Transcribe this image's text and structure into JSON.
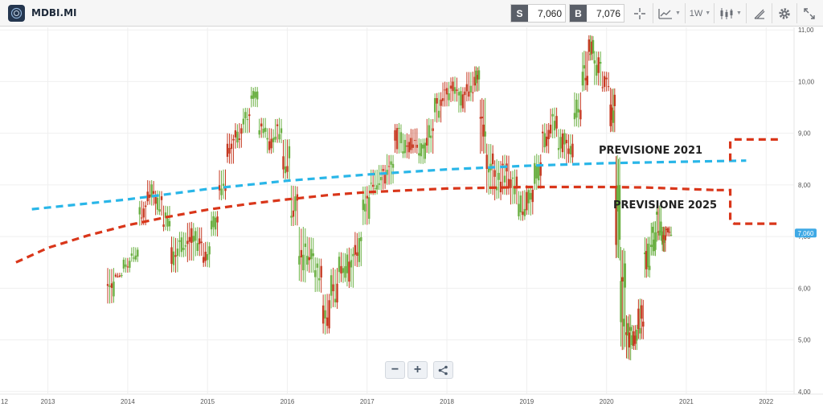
{
  "header": {
    "symbol": "MDBI.MI",
    "sell": {
      "tag": "S",
      "value": "7,060"
    },
    "buy": {
      "tag": "B",
      "value": "7,076"
    },
    "timeframe": "1W"
  },
  "controls": {
    "zoom_out": "−",
    "zoom_in": "+"
  },
  "colors": {
    "up": "#6bb043",
    "down": "#c63a22",
    "forecast_2021": "#29b6e8",
    "forecast_2025": "#d9361a",
    "last_tag": "#3fa9e5"
  },
  "icons": [
    "crosshair-icon",
    "chart-type-icon",
    "candles-icon",
    "draw-icon",
    "gear-icon",
    "expand-icon",
    "share-icon"
  ],
  "chart_data": {
    "type": "candlestick",
    "x_tick_labels": [
      "12",
      "2013",
      "2014",
      "2015",
      "2016",
      "2017",
      "2018",
      "2019",
      "2020",
      "2021",
      "2022"
    ],
    "y_tick_labels": [
      "11,00",
      "10,00",
      "9,00",
      "8,00",
      "7,00",
      "6,00",
      "5,00",
      "4,00"
    ],
    "y_ticks": [
      11,
      10,
      9,
      8,
      7,
      6,
      5,
      4
    ],
    "ylim": [
      3.95,
      11.05
    ],
    "xlim": [
      2012.4,
      2022.35
    ],
    "last_price": 7.06,
    "last_price_label": "7,060",
    "grid": true,
    "annotations": [
      "PREVISIONE 2021",
      "PREVISIONE 2025"
    ],
    "series": [
      {
        "type": "candlestick",
        "ohlc_points": [
          [
            2013.75,
            5.7,
            6.4
          ],
          [
            2013.85,
            6.2,
            6.3
          ],
          [
            2013.95,
            6.3,
            6.6
          ],
          [
            2014.05,
            6.5,
            6.8
          ],
          [
            2014.15,
            7.2,
            7.7
          ],
          [
            2014.25,
            7.6,
            8.1
          ],
          [
            2014.35,
            7.4,
            7.9
          ],
          [
            2014.45,
            7.1,
            7.6
          ],
          [
            2014.55,
            6.3,
            7.0
          ],
          [
            2014.65,
            6.6,
            7.1
          ],
          [
            2014.75,
            6.5,
            7.3
          ],
          [
            2014.85,
            6.6,
            7.2
          ],
          [
            2014.95,
            6.4,
            6.9
          ],
          [
            2015.05,
            7.0,
            7.5
          ],
          [
            2015.15,
            7.7,
            8.3
          ],
          [
            2015.25,
            8.4,
            9.0
          ],
          [
            2015.35,
            8.7,
            9.2
          ],
          [
            2015.45,
            9.0,
            9.5
          ],
          [
            2015.55,
            9.5,
            9.9
          ],
          [
            2015.65,
            8.9,
            9.3
          ],
          [
            2015.75,
            8.6,
            9.1
          ],
          [
            2015.85,
            8.8,
            9.3
          ],
          [
            2015.95,
            8.1,
            8.9
          ],
          [
            2016.05,
            7.2,
            8.0
          ],
          [
            2016.15,
            6.1,
            7.2
          ],
          [
            2016.25,
            6.3,
            7.0
          ],
          [
            2016.35,
            5.9,
            6.6
          ],
          [
            2016.45,
            5.1,
            5.9
          ],
          [
            2016.55,
            5.6,
            6.4
          ],
          [
            2016.65,
            6.1,
            6.7
          ],
          [
            2016.75,
            6.0,
            6.8
          ],
          [
            2016.85,
            6.4,
            7.1
          ],
          [
            2016.95,
            7.2,
            8.0
          ],
          [
            2017.05,
            7.8,
            8.3
          ],
          [
            2017.15,
            7.9,
            8.4
          ],
          [
            2017.25,
            8.0,
            8.6
          ],
          [
            2017.35,
            8.6,
            9.2
          ],
          [
            2017.45,
            8.5,
            9.0
          ],
          [
            2017.55,
            8.6,
            9.1
          ],
          [
            2017.65,
            8.4,
            8.9
          ],
          [
            2017.75,
            8.6,
            9.3
          ],
          [
            2017.85,
            9.2,
            9.8
          ],
          [
            2017.95,
            9.5,
            10.0
          ],
          [
            2018.05,
            9.6,
            10.1
          ],
          [
            2018.15,
            9.4,
            9.9
          ],
          [
            2018.25,
            9.6,
            10.2
          ],
          [
            2018.35,
            9.8,
            10.3
          ],
          [
            2018.42,
            8.6,
            9.7
          ],
          [
            2018.5,
            7.8,
            8.8
          ],
          [
            2018.6,
            7.7,
            8.5
          ],
          [
            2018.7,
            7.8,
            8.6
          ],
          [
            2018.8,
            7.6,
            8.3
          ],
          [
            2018.9,
            7.3,
            7.9
          ],
          [
            2019.0,
            7.4,
            8.0
          ],
          [
            2019.1,
            7.9,
            8.6
          ],
          [
            2019.2,
            8.6,
            9.2
          ],
          [
            2019.3,
            8.9,
            9.5
          ],
          [
            2019.4,
            8.5,
            9.1
          ],
          [
            2019.5,
            8.4,
            9.0
          ],
          [
            2019.6,
            9.1,
            9.8
          ],
          [
            2019.7,
            9.8,
            10.6
          ],
          [
            2019.78,
            10.4,
            10.9
          ],
          [
            2019.85,
            9.9,
            10.6
          ],
          [
            2019.95,
            9.8,
            10.2
          ],
          [
            2020.05,
            9.0,
            9.9
          ],
          [
            2020.12,
            6.5,
            8.6
          ],
          [
            2020.18,
            4.8,
            6.8
          ],
          [
            2020.25,
            4.6,
            5.5
          ],
          [
            2020.32,
            4.8,
            5.3
          ],
          [
            2020.4,
            5.0,
            5.8
          ],
          [
            2020.48,
            6.2,
            7.0
          ],
          [
            2020.56,
            6.6,
            7.3
          ],
          [
            2020.63,
            6.9,
            7.6
          ],
          [
            2020.7,
            6.7,
            7.2
          ],
          [
            2020.75,
            7.0,
            7.2
          ]
        ]
      },
      {
        "name": "PREVISIONE 2021",
        "type": "line",
        "x": [
          2012.8,
          2014.0,
          2015.0,
          2016.0,
          2017.0,
          2018.0,
          2019.0,
          2020.0,
          2021.0,
          2021.75
        ],
        "y": [
          7.53,
          7.72,
          7.92,
          8.08,
          8.2,
          8.3,
          8.37,
          8.42,
          8.45,
          8.47
        ]
      },
      {
        "name": "PREVISIONE 2025",
        "type": "line",
        "x": [
          2012.6,
          2013.0,
          2013.5,
          2014.0,
          2014.5,
          2015.0,
          2015.5,
          2016.0,
          2016.5,
          2017.0,
          2018.0,
          2019.0,
          2020.0,
          2020.5,
          2021.0,
          2021.38
        ],
        "y": [
          6.5,
          6.78,
          7.02,
          7.22,
          7.38,
          7.52,
          7.63,
          7.72,
          7.8,
          7.86,
          7.93,
          7.96,
          7.96,
          7.95,
          7.92,
          7.9
        ]
      },
      {
        "name": "range-2025",
        "type": "step",
        "x": [
          2021.38,
          2021.55,
          2021.55,
          2021.6,
          2022.15
        ],
        "y": [
          7.9,
          7.9,
          7.3,
          7.25,
          7.25
        ]
      },
      {
        "name": "range-2021-top",
        "type": "step",
        "x": [
          2021.55,
          2021.55,
          2021.6,
          2022.15
        ],
        "y": [
          8.47,
          8.85,
          8.88,
          8.88
        ]
      }
    ]
  }
}
